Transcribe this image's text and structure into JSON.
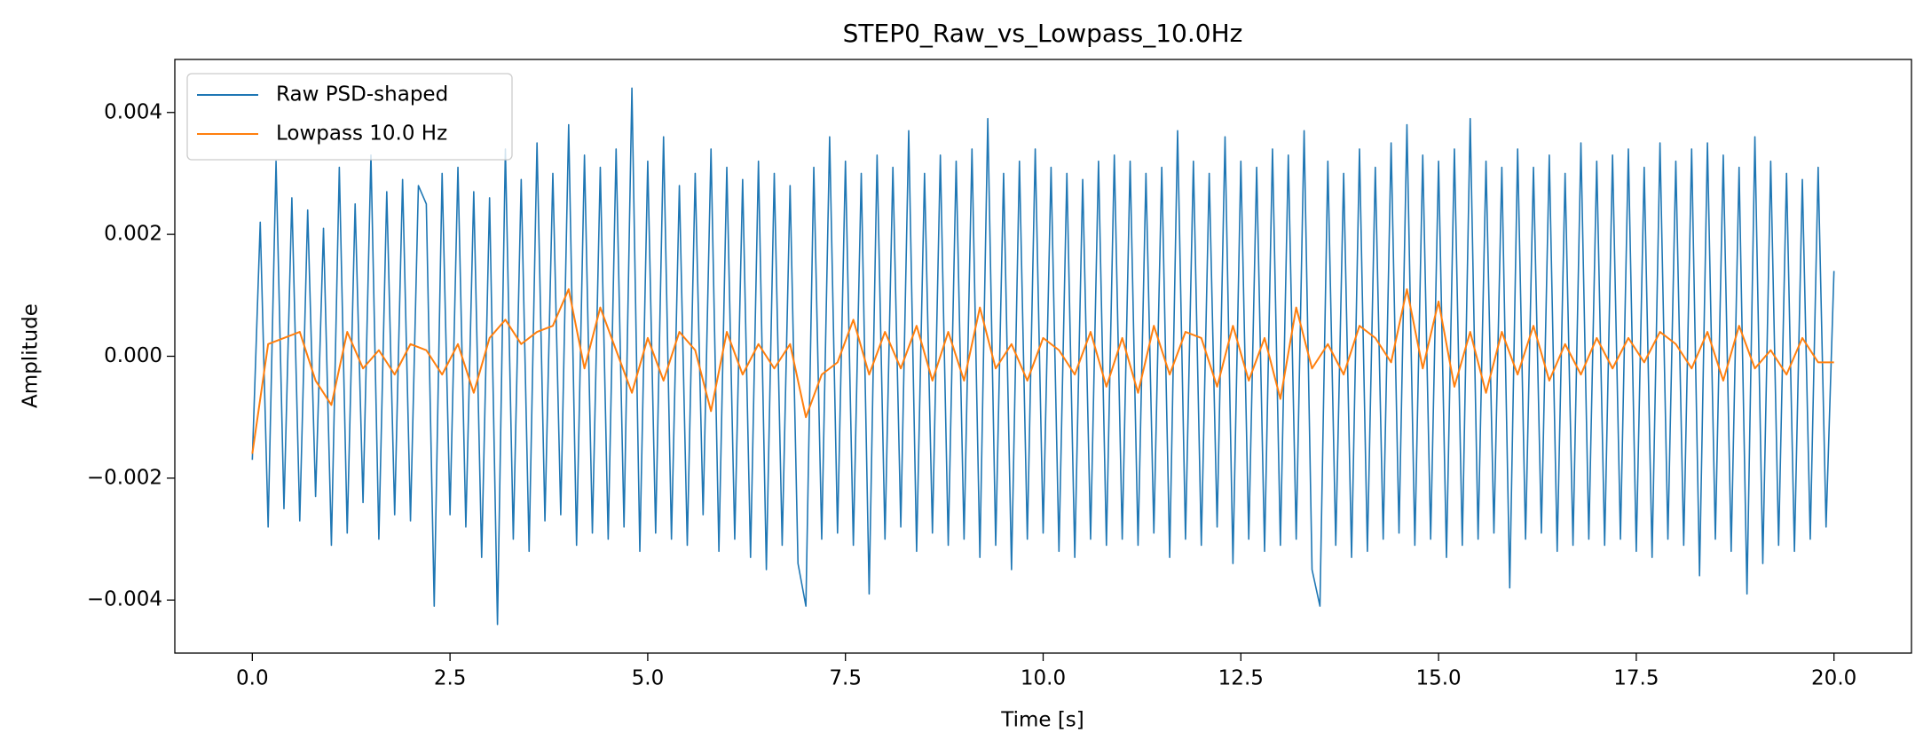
{
  "chart_data": {
    "type": "line",
    "title": "STEP0_Raw_vs_Lowpass_10.0Hz",
    "x_label": "Time [s]",
    "y_label": "Amplitude",
    "legend": "upper left",
    "xlim": [
      -0.98,
      20.98
    ],
    "ylim": [
      -0.00487,
      0.00487
    ],
    "xticks": [
      {
        "value": 0,
        "label": "0.0"
      },
      2.5,
      {
        "value": 5,
        "label": "5.0"
      },
      7.5,
      {
        "value": 10,
        "label": "10.0"
      },
      12.5,
      {
        "value": 15,
        "label": "15.0"
      },
      17.5,
      {
        "value": 20,
        "label": "20.0"
      }
    ],
    "yticks": [
      {
        "value": -0.004,
        "label": "−0.004"
      },
      {
        "value": -0.002,
        "label": "−0.002"
      },
      {
        "value": 0,
        "label": "0.000"
      },
      0.002,
      0.004
    ],
    "series": [
      {
        "name": "Raw PSD-shaped",
        "color": "#1f77b4",
        "x": [
          0.0,
          0.1,
          0.2,
          0.3,
          0.4,
          0.5,
          0.6,
          0.7,
          0.8,
          0.9,
          1.0,
          1.1,
          1.2,
          1.3,
          1.4,
          1.5,
          1.6,
          1.7,
          1.8,
          1.9,
          2.0,
          2.1,
          2.2,
          2.3,
          2.4,
          2.5,
          2.6,
          2.7,
          2.8,
          2.9,
          3.0,
          3.1,
          3.2,
          3.3,
          3.4,
          3.5,
          3.6,
          3.7,
          3.8,
          3.9,
          4.0,
          4.1,
          4.2,
          4.3,
          4.4,
          4.5,
          4.6,
          4.7,
          4.8,
          4.9,
          5.0,
          5.1,
          5.2,
          5.3,
          5.4,
          5.5,
          5.6,
          5.7,
          5.8,
          5.9,
          6.0,
          6.1,
          6.2,
          6.3,
          6.4,
          6.5,
          6.6,
          6.7,
          6.8,
          6.9,
          7.0,
          7.1,
          7.2,
          7.3,
          7.4,
          7.5,
          7.6,
          7.7,
          7.8,
          7.9,
          8.0,
          8.1,
          8.2,
          8.3,
          8.4,
          8.5,
          8.6,
          8.7,
          8.8,
          8.9,
          9.0,
          9.1,
          9.2,
          9.3,
          9.4,
          9.5,
          9.6,
          9.7,
          9.8,
          9.9,
          10.0,
          10.1,
          10.2,
          10.3,
          10.4,
          10.5,
          10.6,
          10.7,
          10.8,
          10.9,
          11.0,
          11.1,
          11.2,
          11.3,
          11.4,
          11.5,
          11.6,
          11.7,
          11.8,
          11.9,
          12.0,
          12.1,
          12.2,
          12.3,
          12.4,
          12.5,
          12.6,
          12.7,
          12.8,
          12.9,
          13.0,
          13.1,
          13.2,
          13.3,
          13.4,
          13.5,
          13.6,
          13.7,
          13.8,
          13.9,
          14.0,
          14.1,
          14.2,
          14.3,
          14.4,
          14.5,
          14.6,
          14.7,
          14.8,
          14.9,
          15.0,
          15.1,
          15.2,
          15.3,
          15.4,
          15.5,
          15.6,
          15.7,
          15.8,
          15.9,
          16.0,
          16.1,
          16.2,
          16.3,
          16.4,
          16.5,
          16.6,
          16.7,
          16.8,
          16.9,
          17.0,
          17.1,
          17.2,
          17.3,
          17.4,
          17.5,
          17.6,
          17.7,
          17.8,
          17.9,
          18.0,
          18.1,
          18.2,
          18.3,
          18.4,
          18.5,
          18.6,
          18.7,
          18.8,
          18.9,
          19.0,
          19.1,
          19.2,
          19.3,
          19.4,
          19.5,
          19.6,
          19.7,
          19.8,
          19.9,
          20.0
        ],
        "values": [
          -0.0017,
          0.0022,
          -0.0028,
          0.0032,
          -0.0025,
          0.0026,
          -0.0027,
          0.0024,
          -0.0023,
          0.0021,
          -0.0031,
          0.0031,
          -0.0029,
          0.0025,
          -0.0024,
          0.0033,
          -0.003,
          0.0027,
          -0.0026,
          0.0029,
          -0.0027,
          0.0028,
          0.0025,
          -0.0041,
          0.003,
          -0.0026,
          0.0031,
          -0.0028,
          0.0027,
          -0.0033,
          0.0026,
          -0.0044,
          0.0034,
          -0.003,
          0.0029,
          -0.0032,
          0.0035,
          -0.0027,
          0.003,
          -0.0026,
          0.0038,
          -0.0031,
          0.0033,
          -0.0029,
          0.0031,
          -0.003,
          0.0034,
          -0.0028,
          0.0044,
          -0.0032,
          0.0032,
          -0.0029,
          0.0036,
          -0.003,
          0.0028,
          -0.0031,
          0.003,
          -0.0026,
          0.0034,
          -0.0032,
          0.0031,
          -0.003,
          0.0029,
          -0.0033,
          0.0032,
          -0.0035,
          0.003,
          -0.0031,
          0.0028,
          -0.0034,
          -0.0041,
          0.0031,
          -0.003,
          0.0036,
          -0.0029,
          0.0032,
          -0.0031,
          0.003,
          -0.0039,
          0.0033,
          -0.003,
          0.0031,
          -0.0028,
          0.0037,
          -0.0032,
          0.003,
          -0.0029,
          0.0033,
          -0.0031,
          0.0032,
          -0.003,
          0.0034,
          -0.0033,
          0.0039,
          -0.0031,
          0.003,
          -0.0035,
          0.0032,
          -0.003,
          0.0034,
          -0.0029,
          0.0031,
          -0.0032,
          0.003,
          -0.0033,
          0.0029,
          -0.003,
          0.0032,
          -0.0031,
          0.0033,
          -0.003,
          0.0032,
          -0.0031,
          0.003,
          -0.0029,
          0.0031,
          -0.0033,
          0.0037,
          -0.003,
          0.0032,
          -0.0031,
          0.003,
          -0.0028,
          0.0036,
          -0.0034,
          0.0032,
          -0.003,
          0.0031,
          -0.0032,
          0.0034,
          -0.0031,
          0.0033,
          -0.003,
          0.0037,
          -0.0035,
          -0.0041,
          0.0032,
          -0.0031,
          0.003,
          -0.0033,
          0.0034,
          -0.0032,
          0.0031,
          -0.003,
          0.0035,
          -0.0029,
          0.0038,
          -0.0031,
          0.0033,
          -0.003,
          0.0032,
          -0.0033,
          0.0034,
          -0.0031,
          0.0039,
          -0.003,
          0.0032,
          -0.0029,
          0.0031,
          -0.0038,
          0.0034,
          -0.003,
          0.0031,
          -0.0029,
          0.0033,
          -0.0032,
          0.003,
          -0.0031,
          0.0035,
          -0.003,
          0.0032,
          -0.0031,
          0.0033,
          -0.003,
          0.0034,
          -0.0032,
          0.0031,
          -0.0033,
          0.0035,
          -0.003,
          0.0032,
          -0.0031,
          0.0034,
          -0.0036,
          0.0035,
          -0.003,
          0.0033,
          -0.0032,
          0.0031,
          -0.0039,
          0.0036,
          -0.0034,
          0.0032,
          -0.0031,
          0.003,
          -0.0032,
          0.0029,
          -0.003,
          0.0031,
          -0.0028,
          0.0014
        ]
      },
      {
        "name": "Lowpass 10.0 Hz",
        "color": "#ff7f0e",
        "x": [
          0.0,
          0.2,
          0.4,
          0.6,
          0.8,
          1.0,
          1.2,
          1.4,
          1.6,
          1.8,
          2.0,
          2.2,
          2.4,
          2.6,
          2.8,
          3.0,
          3.2,
          3.4,
          3.6,
          3.8,
          4.0,
          4.2,
          4.4,
          4.6,
          4.8,
          5.0,
          5.2,
          5.4,
          5.6,
          5.8,
          6.0,
          6.2,
          6.4,
          6.6,
          6.8,
          7.0,
          7.2,
          7.4,
          7.6,
          7.8,
          8.0,
          8.2,
          8.4,
          8.6,
          8.8,
          9.0,
          9.2,
          9.4,
          9.6,
          9.8,
          10.0,
          10.2,
          10.4,
          10.6,
          10.8,
          11.0,
          11.2,
          11.4,
          11.6,
          11.8,
          12.0,
          12.2,
          12.4,
          12.6,
          12.8,
          13.0,
          13.2,
          13.4,
          13.6,
          13.8,
          14.0,
          14.2,
          14.4,
          14.6,
          14.8,
          15.0,
          15.2,
          15.4,
          15.6,
          15.8,
          16.0,
          16.2,
          16.4,
          16.6,
          16.8,
          17.0,
          17.2,
          17.4,
          17.6,
          17.8,
          18.0,
          18.2,
          18.4,
          18.6,
          18.8,
          19.0,
          19.2,
          19.4,
          19.6,
          19.8,
          20.0
        ],
        "values": [
          -0.0016,
          0.0002,
          0.0003,
          0.0004,
          -0.0004,
          -0.0008,
          0.0004,
          -0.0002,
          0.0001,
          -0.0003,
          0.0002,
          0.0001,
          -0.0003,
          0.0002,
          -0.0006,
          0.0003,
          0.0006,
          0.0002,
          0.0004,
          0.0005,
          0.0011,
          -0.0002,
          0.0008,
          0.0001,
          -0.0006,
          0.0003,
          -0.0004,
          0.0004,
          0.0001,
          -0.0009,
          0.0004,
          -0.0003,
          0.0002,
          -0.0002,
          0.0002,
          -0.001,
          -0.0003,
          -0.0001,
          0.0006,
          -0.0003,
          0.0004,
          -0.0002,
          0.0005,
          -0.0004,
          0.0004,
          -0.0004,
          0.0008,
          -0.0002,
          0.0002,
          -0.0004,
          0.0003,
          0.0001,
          -0.0003,
          0.0004,
          -0.0005,
          0.0003,
          -0.0006,
          0.0005,
          -0.0003,
          0.0004,
          0.0003,
          -0.0005,
          0.0005,
          -0.0004,
          0.0003,
          -0.0007,
          0.0008,
          -0.0002,
          0.0002,
          -0.0003,
          0.0005,
          0.0003,
          -0.0001,
          0.0011,
          -0.0002,
          0.0009,
          -0.0005,
          0.0004,
          -0.0006,
          0.0004,
          -0.0003,
          0.0005,
          -0.0004,
          0.0002,
          -0.0003,
          0.0003,
          -0.0002,
          0.0003,
          -0.0001,
          0.0004,
          0.0002,
          -0.0002,
          0.0004,
          -0.0004,
          0.0005,
          -0.0002,
          0.0001,
          -0.0003,
          0.0003,
          -0.0001,
          -0.0001
        ]
      }
    ]
  }
}
